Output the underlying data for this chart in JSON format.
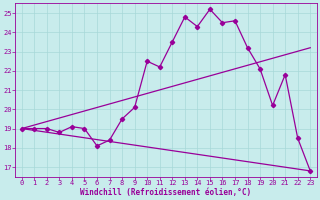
{
  "xlabel": "Windchill (Refroidissement éolien,°C)",
  "background_color": "#c8ecec",
  "line_color": "#990099",
  "grid_color": "#a8d8d8",
  "xlim": [
    -0.5,
    23.5
  ],
  "ylim": [
    16.5,
    25.5
  ],
  "yticks": [
    17,
    18,
    19,
    20,
    21,
    22,
    23,
    24,
    25
  ],
  "xticks": [
    0,
    1,
    2,
    3,
    4,
    5,
    6,
    7,
    8,
    9,
    10,
    11,
    12,
    13,
    14,
    15,
    16,
    17,
    18,
    19,
    20,
    21,
    22,
    23
  ],
  "line1_x": [
    0,
    1,
    2,
    3,
    4,
    5,
    6,
    7,
    8,
    9,
    10,
    11,
    12,
    13,
    14,
    15,
    16,
    17,
    18,
    19,
    20,
    21,
    22,
    23
  ],
  "line1_y": [
    19.0,
    19.0,
    19.0,
    18.8,
    19.1,
    19.0,
    18.1,
    18.4,
    19.5,
    20.1,
    22.5,
    22.2,
    23.5,
    24.8,
    24.3,
    25.2,
    24.5,
    24.6,
    23.2,
    22.1,
    20.2,
    21.8,
    18.5,
    16.8
  ],
  "line2_x": [
    0,
    23
  ],
  "line2_y": [
    19.0,
    23.2
  ],
  "line3_x": [
    0,
    23
  ],
  "line3_y": [
    19.0,
    16.8
  ],
  "tick_fontsize": 5,
  "xlabel_fontsize": 5.5
}
